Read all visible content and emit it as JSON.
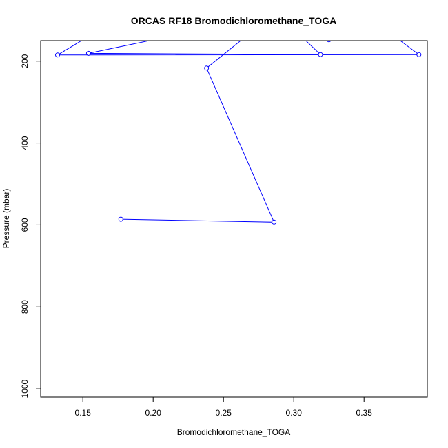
{
  "chart_data": {
    "type": "line",
    "title": "ORCAS RF18 Bromodichloromethane_TOGA",
    "xlabel": "Bromodichloromethane_TOGA",
    "ylabel": "Pressure (mbar)",
    "xlim": [
      0.12,
      0.395
    ],
    "ylim": [
      1020,
      150
    ],
    "y_reversed": true,
    "x_ticks": [
      0.15,
      0.2,
      0.25,
      0.3,
      0.35
    ],
    "x_tick_labels": [
      "0.15",
      "0.20",
      "0.25",
      "0.30",
      "0.35"
    ],
    "y_ticks": [
      200,
      400,
      600,
      800,
      1000
    ],
    "y_tick_labels": [
      "200",
      "400",
      "600",
      "800",
      "1000"
    ],
    "grid": false,
    "line_color": "#0000ff",
    "points": [
      {
        "x": 0.177,
        "y": 586
      },
      {
        "x": 0.286,
        "y": 593
      },
      {
        "x": 0.238,
        "y": 217
      },
      {
        "x": 0.263,
        "y": 148
      },
      {
        "x": 0.308,
        "y": 148
      },
      {
        "x": 0.319,
        "y": 184
      },
      {
        "x": 0.154,
        "y": 181
      },
      {
        "x": 0.2,
        "y": 148
      },
      {
        "x": 0.15,
        "y": 148
      },
      {
        "x": 0.132,
        "y": 185
      },
      {
        "x": 0.389,
        "y": 184
      },
      {
        "x": 0.375,
        "y": 148
      },
      {
        "x": 0.325,
        "y": 148
      }
    ],
    "marker_points": [
      {
        "x": 0.177,
        "y": 586
      },
      {
        "x": 0.286,
        "y": 593
      },
      {
        "x": 0.238,
        "y": 217
      },
      {
        "x": 0.319,
        "y": 184
      },
      {
        "x": 0.154,
        "y": 181
      },
      {
        "x": 0.132,
        "y": 185
      },
      {
        "x": 0.389,
        "y": 184
      },
      {
        "x": 0.325,
        "y": 148
      }
    ]
  }
}
